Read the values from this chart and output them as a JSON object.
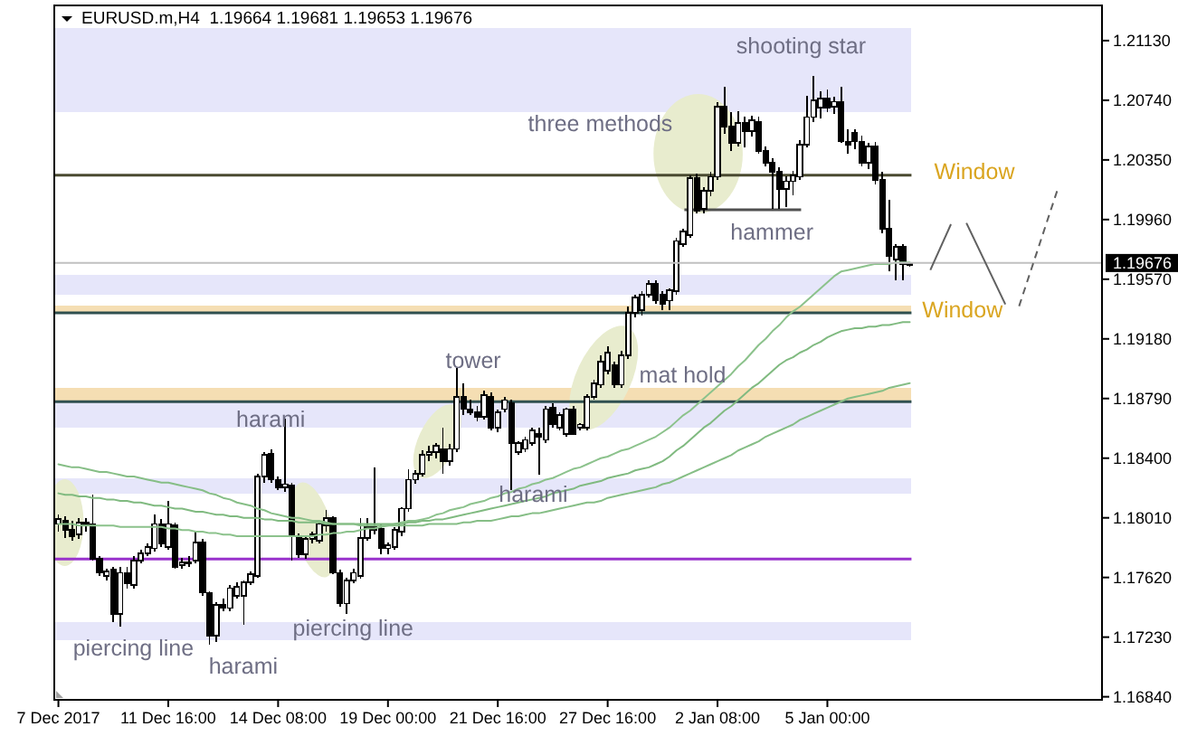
{
  "chart_data": {
    "type": "candlestick",
    "title": "EURUSD.m,H4  1.19664 1.19681 1.19653 1.19676",
    "categories": [
      "7 Dec 2017",
      null,
      null,
      null,
      null,
      null,
      null,
      null,
      null,
      null,
      null,
      null,
      null,
      null,
      null,
      null,
      "11 Dec 16:00",
      null,
      null,
      null,
      null,
      null,
      null,
      null,
      null,
      null,
      null,
      null,
      null,
      null,
      null,
      null,
      "14 Dec 08:00",
      null,
      null,
      null,
      null,
      null,
      null,
      null,
      null,
      null,
      null,
      null,
      null,
      null,
      null,
      null,
      "19 Dec 00:00",
      null,
      null,
      null,
      null,
      null,
      null,
      null,
      null,
      null,
      null,
      null,
      null,
      null,
      null,
      null,
      "21 Dec 16:00",
      null,
      null,
      null,
      null,
      null,
      null,
      null,
      null,
      null,
      null,
      null,
      null,
      null,
      null,
      null,
      "27 Dec 16:00",
      null,
      null,
      null,
      null,
      null,
      null,
      null,
      null,
      null,
      null,
      null,
      null,
      null,
      null,
      null,
      "2 Jan 08:00",
      null,
      null,
      null,
      null,
      null,
      null,
      null,
      null,
      null,
      null,
      null,
      null,
      null,
      null,
      null,
      "5 Jan 00:00",
      null,
      null,
      null,
      null,
      null,
      null,
      null,
      null,
      null,
      null,
      null,
      null
    ],
    "ohlc": [
      [
        1.1797,
        1.1803,
        1.1792,
        1.18
      ],
      [
        1.1799,
        1.1802,
        1.1788,
        1.1793
      ],
      [
        1.1793,
        1.1799,
        1.1786,
        1.1789
      ],
      [
        1.179,
        1.1801,
        1.1787,
        1.1798
      ],
      [
        1.1798,
        1.1801,
        1.1792,
        1.1796
      ],
      [
        1.1797,
        1.1816,
        1.1773,
        1.1774
      ],
      [
        1.1774,
        1.1776,
        1.1763,
        1.1765
      ],
      [
        1.1763,
        1.1768,
        1.176,
        1.1766
      ],
      [
        1.1767,
        1.1769,
        1.1733,
        1.1738
      ],
      [
        1.1738,
        1.1769,
        1.173,
        1.1765
      ],
      [
        1.1765,
        1.1769,
        1.1755,
        1.1758
      ],
      [
        1.1757,
        1.1776,
        1.1755,
        1.1773
      ],
      [
        1.1773,
        1.178,
        1.1771,
        1.1778
      ],
      [
        1.1778,
        1.1784,
        1.1776,
        1.1782
      ],
      [
        1.1781,
        1.1803,
        1.1779,
        1.1797
      ],
      [
        1.1797,
        1.18,
        1.1782,
        1.1784
      ],
      [
        1.1782,
        1.1812,
        1.178,
        1.1797
      ],
      [
        1.1796,
        1.1798,
        1.1768,
        1.1769
      ],
      [
        1.177,
        1.1775,
        1.1768,
        1.1772
      ],
      [
        1.1772,
        1.1776,
        1.1769,
        1.1771
      ],
      [
        1.1773,
        1.1792,
        1.1771,
        1.1785
      ],
      [
        1.1785,
        1.1787,
        1.175,
        1.1752
      ],
      [
        1.1752,
        1.1753,
        1.1718,
        1.1724
      ],
      [
        1.1724,
        1.1746,
        1.172,
        1.1744
      ],
      [
        1.1744,
        1.1748,
        1.174,
        1.1742
      ],
      [
        1.1742,
        1.1757,
        1.174,
        1.1755
      ],
      [
        1.175,
        1.1759,
        1.1748,
        1.1756
      ],
      [
        1.175,
        1.176,
        1.1731,
        1.1759
      ],
      [
        1.1759,
        1.1766,
        1.1757,
        1.1764
      ],
      [
        1.1763,
        1.183,
        1.1762,
        1.1828
      ],
      [
        1.1828,
        1.1844,
        1.1824,
        1.1842
      ],
      [
        1.1843,
        1.1846,
        1.1824,
        1.1826
      ],
      [
        1.1826,
        1.1828,
        1.1819,
        1.1821
      ],
      [
        1.1821,
        1.1866,
        1.1818,
        1.1823
      ],
      [
        1.1822,
        1.1824,
        1.1773,
        1.1789
      ],
      [
        1.1789,
        1.1791,
        1.1775,
        1.1777
      ],
      [
        1.1777,
        1.1789,
        1.1774,
        1.1787
      ],
      [
        1.1787,
        1.1792,
        1.1784,
        1.179
      ],
      [
        1.1786,
        1.1798,
        1.1784,
        1.1797
      ],
      [
        1.1796,
        1.1806,
        1.1792,
        1.1801
      ],
      [
        1.1801,
        1.1802,
        1.1764,
        1.1765
      ],
      [
        1.1765,
        1.1767,
        1.1743,
        1.1745
      ],
      [
        1.1745,
        1.1762,
        1.1738,
        1.176
      ],
      [
        1.176,
        1.1768,
        1.1758,
        1.1765
      ],
      [
        1.1763,
        1.1801,
        1.1761,
        1.1788
      ],
      [
        1.1788,
        1.1801,
        1.1786,
        1.1795
      ],
      [
        1.1795,
        1.1834,
        1.179,
        1.1793
      ],
      [
        1.1794,
        1.1797,
        1.1777,
        1.1781
      ],
      [
        1.1781,
        1.1785,
        1.1777,
        1.1783
      ],
      [
        1.1782,
        1.1795,
        1.178,
        1.1793
      ],
      [
        1.1792,
        1.1808,
        1.1789,
        1.1807
      ],
      [
        1.1807,
        1.1833,
        1.1805,
        1.1826
      ],
      [
        1.1826,
        1.1832,
        1.1823,
        1.183
      ],
      [
        1.183,
        1.1845,
        1.1828,
        1.1842
      ],
      [
        1.1842,
        1.1848,
        1.1838,
        1.1844
      ],
      [
        1.1844,
        1.185,
        1.184,
        1.1848
      ],
      [
        1.1846,
        1.186,
        1.183,
        1.1838
      ],
      [
        1.1838,
        1.1849,
        1.1835,
        1.1846
      ],
      [
        1.1846,
        1.1899,
        1.1844,
        1.188
      ],
      [
        1.188,
        1.1889,
        1.1868,
        1.1872
      ],
      [
        1.1872,
        1.1878,
        1.1868,
        1.187
      ],
      [
        1.187,
        1.1874,
        1.1864,
        1.1867
      ],
      [
        1.1867,
        1.1884,
        1.1865,
        1.1881
      ],
      [
        1.188,
        1.1883,
        1.1858,
        1.186
      ],
      [
        1.186,
        1.1872,
        1.1857,
        1.187
      ],
      [
        1.1872,
        1.188,
        1.187,
        1.1878
      ],
      [
        1.1876,
        1.1878,
        1.1819,
        1.185
      ],
      [
        1.1844,
        1.1851,
        1.1842,
        1.185
      ],
      [
        1.1846,
        1.1854,
        1.1844,
        1.1852
      ],
      [
        1.185,
        1.186,
        1.1848,
        1.1858
      ],
      [
        1.1856,
        1.186,
        1.1829,
        1.1854
      ],
      [
        1.1852,
        1.1874,
        1.185,
        1.1872
      ],
      [
        1.1873,
        1.1876,
        1.186,
        1.1862
      ],
      [
        1.186,
        1.187,
        1.1858,
        1.1868
      ],
      [
        1.1856,
        1.1873,
        1.1854,
        1.1872
      ],
      [
        1.1872,
        1.1874,
        1.1855,
        1.1856
      ],
      [
        1.186,
        1.1863,
        1.1858,
        1.1862
      ],
      [
        1.186,
        1.1882,
        1.1858,
        1.188
      ],
      [
        1.188,
        1.1891,
        1.1878,
        1.1889
      ],
      [
        1.1888,
        1.1907,
        1.1886,
        1.1903
      ],
      [
        1.1897,
        1.1913,
        1.1895,
        1.1909
      ],
      [
        1.1901,
        1.1903,
        1.1886,
        1.1888
      ],
      [
        1.1888,
        1.191,
        1.1886,
        1.1907
      ],
      [
        1.1907,
        1.1939,
        1.1905,
        1.1935
      ],
      [
        1.1935,
        1.1947,
        1.1932,
        1.1945
      ],
      [
        1.1937,
        1.1949,
        1.1933,
        1.1947
      ],
      [
        1.1947,
        1.1956,
        1.1945,
        1.1954
      ],
      [
        1.1954,
        1.1956,
        1.1941,
        1.1943
      ],
      [
        1.1947,
        1.1949,
        1.1937,
        1.1941
      ],
      [
        1.1943,
        1.1951,
        1.1937,
        1.195
      ],
      [
        1.1949,
        1.1984,
        1.1947,
        1.1982
      ],
      [
        1.198,
        1.199,
        1.1978,
        1.1988
      ],
      [
        1.1986,
        1.2025,
        1.1984,
        1.2023
      ],
      [
        1.2023,
        1.2026,
        1.2,
        1.2002
      ],
      [
        1.2003,
        1.2017,
        1.2,
        1.2015
      ],
      [
        1.2015,
        1.2027,
        1.2011,
        1.2024
      ],
      [
        1.2024,
        1.2073,
        1.2022,
        1.207
      ],
      [
        1.207,
        1.2083,
        1.2052,
        1.2057
      ],
      [
        1.2057,
        1.2066,
        1.2041,
        1.2046
      ],
      [
        1.2046,
        1.2067,
        1.2044,
        1.2059
      ],
      [
        1.2059,
        1.2063,
        1.2043,
        1.2054
      ],
      [
        1.2054,
        1.2064,
        1.205,
        1.2061
      ],
      [
        1.206,
        1.2063,
        1.2039,
        1.2041
      ],
      [
        1.2041,
        1.2044,
        1.2031,
        1.2033
      ],
      [
        1.2033,
        1.2036,
        1.2003,
        1.2027
      ],
      [
        1.2027,
        1.203,
        1.2003,
        1.2016
      ],
      [
        1.2016,
        1.2024,
        1.2004,
        1.2021
      ],
      [
        1.2021,
        1.2028,
        1.2012,
        1.2025
      ],
      [
        1.2024,
        1.2048,
        1.2022,
        1.2045
      ],
      [
        1.2045,
        1.2077,
        1.2043,
        1.2063
      ],
      [
        1.2063,
        1.209,
        1.206,
        1.2074
      ],
      [
        1.2069,
        1.208,
        1.2062,
        1.2075
      ],
      [
        1.2075,
        1.2081,
        1.2066,
        1.2069
      ],
      [
        1.207,
        1.2076,
        1.2065,
        1.2073
      ],
      [
        1.2073,
        1.2083,
        1.2046,
        1.2047
      ],
      [
        1.2047,
        1.2055,
        1.2039,
        1.2045
      ],
      [
        1.2053,
        1.2055,
        1.2042,
        1.2047
      ],
      [
        1.2047,
        1.2051,
        1.2031,
        1.2033
      ],
      [
        1.2033,
        1.2046,
        1.2029,
        1.2044
      ],
      [
        1.2044,
        1.2047,
        1.2019,
        1.2022
      ],
      [
        1.2022,
        1.2027,
        1.1987,
        1.199
      ],
      [
        1.199,
        1.2009,
        1.1962,
        1.1972
      ],
      [
        1.197,
        1.198,
        1.1956,
        1.1978
      ],
      [
        1.1978,
        1.198,
        1.1956,
        1.1967
      ],
      [
        1.19664,
        1.19681,
        1.19653,
        1.19676
      ]
    ],
    "series": [
      {
        "type": "line",
        "color": "#8cc28c",
        "values": [
          1.1797,
          1.1797,
          1.1797,
          1.1796,
          1.1796,
          1.1796,
          1.1796,
          1.1796,
          1.1796,
          1.1795,
          1.1795,
          1.1795,
          1.1795,
          1.1795,
          1.1795,
          1.1795,
          1.1794,
          1.1794,
          1.1793,
          1.1793,
          1.1792,
          1.1792,
          1.1791,
          1.1791,
          1.179,
          1.179,
          1.1789,
          1.1789,
          1.1789,
          1.1789,
          1.1789,
          1.1789,
          1.1789,
          1.1789,
          1.1789,
          1.1789,
          1.1789,
          1.1789,
          1.179,
          1.179,
          1.1791,
          1.1791,
          1.1792,
          1.1792,
          1.1793,
          1.1794,
          1.1794,
          1.1795,
          1.1796,
          1.1797,
          1.1798,
          1.1799,
          1.1799,
          1.18,
          1.1801,
          1.1803,
          1.1804,
          1.1806,
          1.1807,
          1.1808,
          1.181,
          1.1811,
          1.1812,
          1.1814,
          1.1815,
          1.1817,
          1.1818,
          1.182,
          1.1821,
          1.1823,
          1.1824,
          1.1826,
          1.1827,
          1.1829,
          1.1831,
          1.1833,
          1.1834,
          1.1836,
          1.1838,
          1.184,
          1.1841,
          1.1843,
          1.1845,
          1.1846,
          1.1848,
          1.185,
          1.1852,
          1.1854,
          1.1857,
          1.186,
          1.1864,
          1.1868,
          1.1871,
          1.1875,
          1.1879,
          1.1883,
          1.1887,
          1.1891,
          1.1895,
          1.19,
          1.1904,
          1.1909,
          1.1914,
          1.1918,
          1.1923,
          1.1927,
          1.1932,
          1.1936,
          1.1939,
          1.1943,
          1.1947,
          1.1951,
          1.1955,
          1.1959,
          1.1962,
          1.1963,
          1.1964,
          1.1965,
          1.1966,
          1.1967,
          1.1967,
          1.1967,
          1.1968,
          1.1968,
          1.1968
        ]
      },
      {
        "type": "line",
        "color": "#80ba80",
        "values": [
          1.1817,
          1.1816,
          1.1816,
          1.1815,
          1.1815,
          1.1814,
          1.1814,
          1.1813,
          1.1813,
          1.1812,
          1.1812,
          1.1811,
          1.1811,
          1.181,
          1.1809,
          1.1809,
          1.1808,
          1.1807,
          1.1807,
          1.1806,
          1.1805,
          1.1805,
          1.1804,
          1.1803,
          1.1803,
          1.1802,
          1.1802,
          1.1801,
          1.1801,
          1.1801,
          1.18,
          1.18,
          1.1799,
          1.1799,
          1.1799,
          1.1798,
          1.1798,
          1.1798,
          1.1798,
          1.1797,
          1.1797,
          1.1797,
          1.1797,
          1.1797,
          1.1797,
          1.1797,
          1.1797,
          1.1797,
          1.1797,
          1.1797,
          1.1797,
          1.1798,
          1.1798,
          1.1799,
          1.1799,
          1.18,
          1.18,
          1.1801,
          1.1802,
          1.1803,
          1.1804,
          1.1805,
          1.1806,
          1.1807,
          1.1808,
          1.1809,
          1.181,
          1.1811,
          1.1812,
          1.1813,
          1.1814,
          1.1815,
          1.1817,
          1.1818,
          1.1819,
          1.182,
          1.1822,
          1.1823,
          1.1824,
          1.1825,
          1.1827,
          1.1828,
          1.1829,
          1.183,
          1.1832,
          1.1833,
          1.1834,
          1.1836,
          1.1838,
          1.1841,
          1.1845,
          1.1848,
          1.1852,
          1.1856,
          1.186,
          1.1863,
          1.1867,
          1.1871,
          1.1874,
          1.1878,
          1.1882,
          1.1886,
          1.1889,
          1.1893,
          1.1897,
          1.1901,
          1.1904,
          1.1906,
          1.1909,
          1.1911,
          1.1914,
          1.1916,
          1.1919,
          1.1921,
          1.1923,
          1.1924,
          1.1925,
          1.1925,
          1.1926,
          1.1926,
          1.1927,
          1.1927,
          1.1928,
          1.1929,
          1.1929
        ]
      },
      {
        "type": "line",
        "color": "#86be86",
        "values": [
          1.1836,
          1.1835,
          1.1834,
          1.1834,
          1.1833,
          1.1832,
          1.1831,
          1.1831,
          1.183,
          1.1829,
          1.1828,
          1.1828,
          1.1827,
          1.1826,
          1.1825,
          1.1824,
          1.1824,
          1.1823,
          1.1822,
          1.1821,
          1.182,
          1.1819,
          1.1817,
          1.1816,
          1.1814,
          1.1813,
          1.1811,
          1.181,
          1.1809,
          1.1807,
          1.1806,
          1.1804,
          1.1803,
          1.1802,
          1.1801,
          1.1801,
          1.18,
          1.1799,
          1.1799,
          1.1798,
          1.1797,
          1.1797,
          1.1797,
          1.1797,
          1.1796,
          1.1796,
          1.1796,
          1.1796,
          1.1796,
          1.1796,
          1.1796,
          1.1796,
          1.1796,
          1.1796,
          1.1797,
          1.1797,
          1.1797,
          1.1797,
          1.1797,
          1.1798,
          1.1798,
          1.1799,
          1.1799,
          1.1799,
          1.18,
          1.1801,
          1.1802,
          1.1802,
          1.1803,
          1.1804,
          1.1804,
          1.1805,
          1.1806,
          1.1807,
          1.1808,
          1.1809,
          1.181,
          1.1811,
          1.1811,
          1.1812,
          1.1814,
          1.1815,
          1.1816,
          1.1817,
          1.1818,
          1.1819,
          1.182,
          1.1821,
          1.1823,
          1.1824,
          1.1826,
          1.1828,
          1.183,
          1.1832,
          1.1834,
          1.1836,
          1.1838,
          1.184,
          1.1842,
          1.1845,
          1.1847,
          1.1849,
          1.1851,
          1.1854,
          1.1856,
          1.1858,
          1.186,
          1.1862,
          1.1865,
          1.1867,
          1.1869,
          1.1871,
          1.1873,
          1.1875,
          1.1877,
          1.1879,
          1.188,
          1.1881,
          1.1882,
          1.1883,
          1.1884,
          1.1886,
          1.1887,
          1.1888,
          1.1889
        ]
      }
    ],
    "ylim": [
      1.1682,
      1.2136
    ],
    "yticks": [
      {
        "value": 1.1684,
        "label": "1.16840"
      },
      {
        "value": 1.1723,
        "label": "1.17230"
      },
      {
        "value": 1.1762,
        "label": "1.17620"
      },
      {
        "value": 1.1801,
        "label": "1.18010"
      },
      {
        "value": 1.184,
        "label": "1.18400"
      },
      {
        "value": 1.1879,
        "label": "1.18790"
      },
      {
        "value": 1.1918,
        "label": "1.19180"
      },
      {
        "value": 1.1957,
        "label": "1.19570"
      },
      {
        "value": 1.1996,
        "label": "1.19960"
      },
      {
        "value": 1.2035,
        "label": "1.20350"
      },
      {
        "value": 1.2074,
        "label": "1.20740"
      },
      {
        "value": 1.2113,
        "label": "1.21130"
      }
    ],
    "bands": [
      {
        "axis": "y",
        "from": 1.2066,
        "to": 1.2121,
        "color": "#e6e6fa"
      },
      {
        "axis": "y",
        "from": 1.1947,
        "to": 1.196,
        "color": "#e6e6fa"
      },
      {
        "axis": "y",
        "from": 1.186,
        "to": 1.1877,
        "color": "#e6e6fa"
      },
      {
        "axis": "y",
        "from": 1.1817,
        "to": 1.1827,
        "color": "#e6e6fa"
      },
      {
        "axis": "y",
        "from": 1.1721,
        "to": 1.1733,
        "color": "#e6e6fa"
      },
      {
        "axis": "y",
        "from": 1.1935,
        "to": 1.194,
        "color": "#f5deb3"
      },
      {
        "axis": "y",
        "from": 1.1877,
        "to": 1.1886,
        "color": "#f5deb3"
      }
    ],
    "ref_lines": [
      {
        "axis": "y",
        "value": 1.2025,
        "color": "#4a4a30"
      },
      {
        "axis": "y",
        "value": 1.1935,
        "color": "#2f4f4f"
      },
      {
        "axis": "y",
        "value": 1.1877,
        "color": "#2f4f4f"
      },
      {
        "axis": "y",
        "value": 1.1774,
        "color": "#9932cc"
      },
      {
        "axis": "y",
        "value": 1.19676,
        "label": "1.19676",
        "color": "#c0c0c0"
      }
    ],
    "annotations": [
      "shooting star",
      "three methods",
      "Window",
      "hammer",
      "Window",
      "tower",
      "mat hold",
      "harami",
      "harami",
      "piercing line",
      "piercing line",
      "harami"
    ]
  }
}
